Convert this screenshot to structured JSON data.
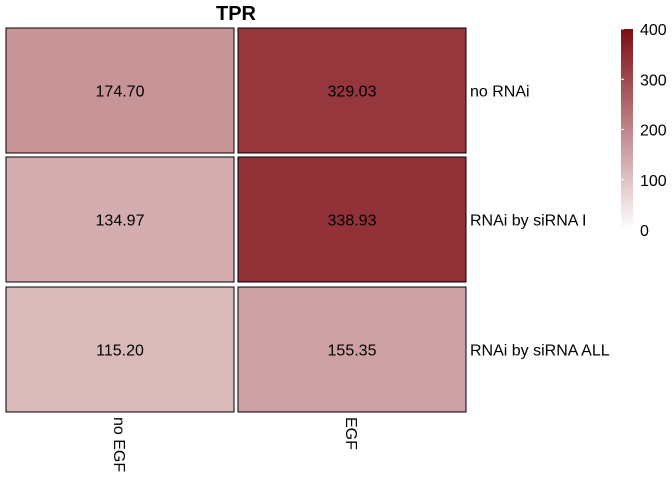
{
  "chart_data": {
    "type": "heatmap",
    "title": "TPR",
    "columns": [
      "no EGF",
      "EGF"
    ],
    "rows": [
      "no RNAi",
      "RNAi by siRNA I",
      "RNAi by siRNA ALL"
    ],
    "values": [
      [
        174.7,
        329.03
      ],
      [
        134.97,
        338.93
      ],
      [
        115.2,
        155.35
      ]
    ],
    "value_labels": [
      [
        "174.70",
        "329.03"
      ],
      [
        "134.97",
        "338.93"
      ],
      [
        "115.20",
        "155.35"
      ]
    ],
    "color_scale": {
      "min": 0,
      "max": 400,
      "low_color": "#ffffff",
      "high_color": "#7f0c14",
      "ticks": [
        "0",
        "100",
        "200",
        "300",
        "400"
      ]
    },
    "legend_position": "top-right",
    "grid": false
  }
}
